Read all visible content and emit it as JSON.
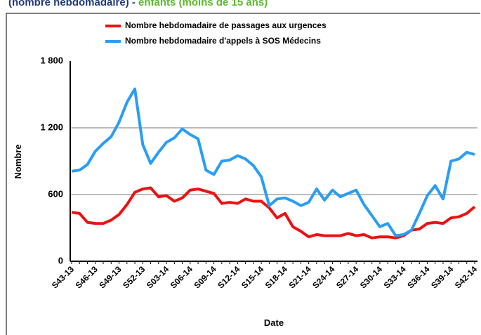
{
  "chart_data": {
    "type": "line",
    "title_parts": [
      {
        "text": "(nombre hebdomadaire) - ",
        "color": "#1f3a7a"
      },
      {
        "text": "enfants (moins de 15 ans)",
        "color": "#5cb82e"
      }
    ],
    "xlabel": "Date",
    "ylabel": "Nombre",
    "categories": [
      "S43-13",
      null,
      null,
      "S46-13",
      null,
      null,
      "S49-13",
      null,
      null,
      "S52-13",
      null,
      null,
      "S03-14",
      null,
      null,
      "S06-14",
      null,
      null,
      "S09-14",
      null,
      null,
      "S12-14",
      null,
      null,
      "S15-14",
      null,
      null,
      "S18-14",
      null,
      null,
      "S21-14",
      null,
      null,
      "S24-14",
      null,
      null,
      "S27-14",
      null,
      null,
      "S30-14",
      null,
      null,
      "S33-14",
      null,
      null,
      "S36-14",
      null,
      null,
      "S39-14",
      null,
      null,
      "S42-14"
    ],
    "series": [
      {
        "name": "Nombre hebdomadaire de passages aux urgences",
        "color": "#ee1111",
        "values": [
          440,
          430,
          350,
          340,
          340,
          370,
          420,
          510,
          620,
          650,
          660,
          580,
          590,
          540,
          570,
          640,
          650,
          630,
          610,
          520,
          530,
          520,
          560,
          540,
          540,
          480,
          390,
          430,
          310,
          270,
          220,
          240,
          230,
          230,
          230,
          250,
          230,
          240,
          210,
          220,
          220,
          210,
          230,
          280,
          290,
          340,
          350,
          340,
          390,
          400,
          430,
          490
        ]
      },
      {
        "name": "Nombre hebdomadaire d'appels à SOS Médecins",
        "color": "#2a9df4",
        "values": [
          810,
          820,
          870,
          990,
          1060,
          1120,
          1250,
          1430,
          1550,
          1050,
          880,
          980,
          1070,
          1110,
          1190,
          1140,
          1100,
          820,
          780,
          900,
          910,
          950,
          920,
          860,
          760,
          500,
          560,
          570,
          540,
          500,
          530,
          650,
          550,
          640,
          580,
          610,
          640,
          510,
          410,
          310,
          340,
          230,
          240,
          280,
          430,
          590,
          680,
          560,
          900,
          920,
          980,
          960
        ]
      }
    ],
    "ylim": [
      0,
      1800
    ],
    "yticks": [
      0,
      600,
      {
        "value": 1200,
        "label": "1 200"
      },
      {
        "value": 1800,
        "label": "1 800"
      }
    ],
    "grid": true,
    "legend": "top"
  }
}
